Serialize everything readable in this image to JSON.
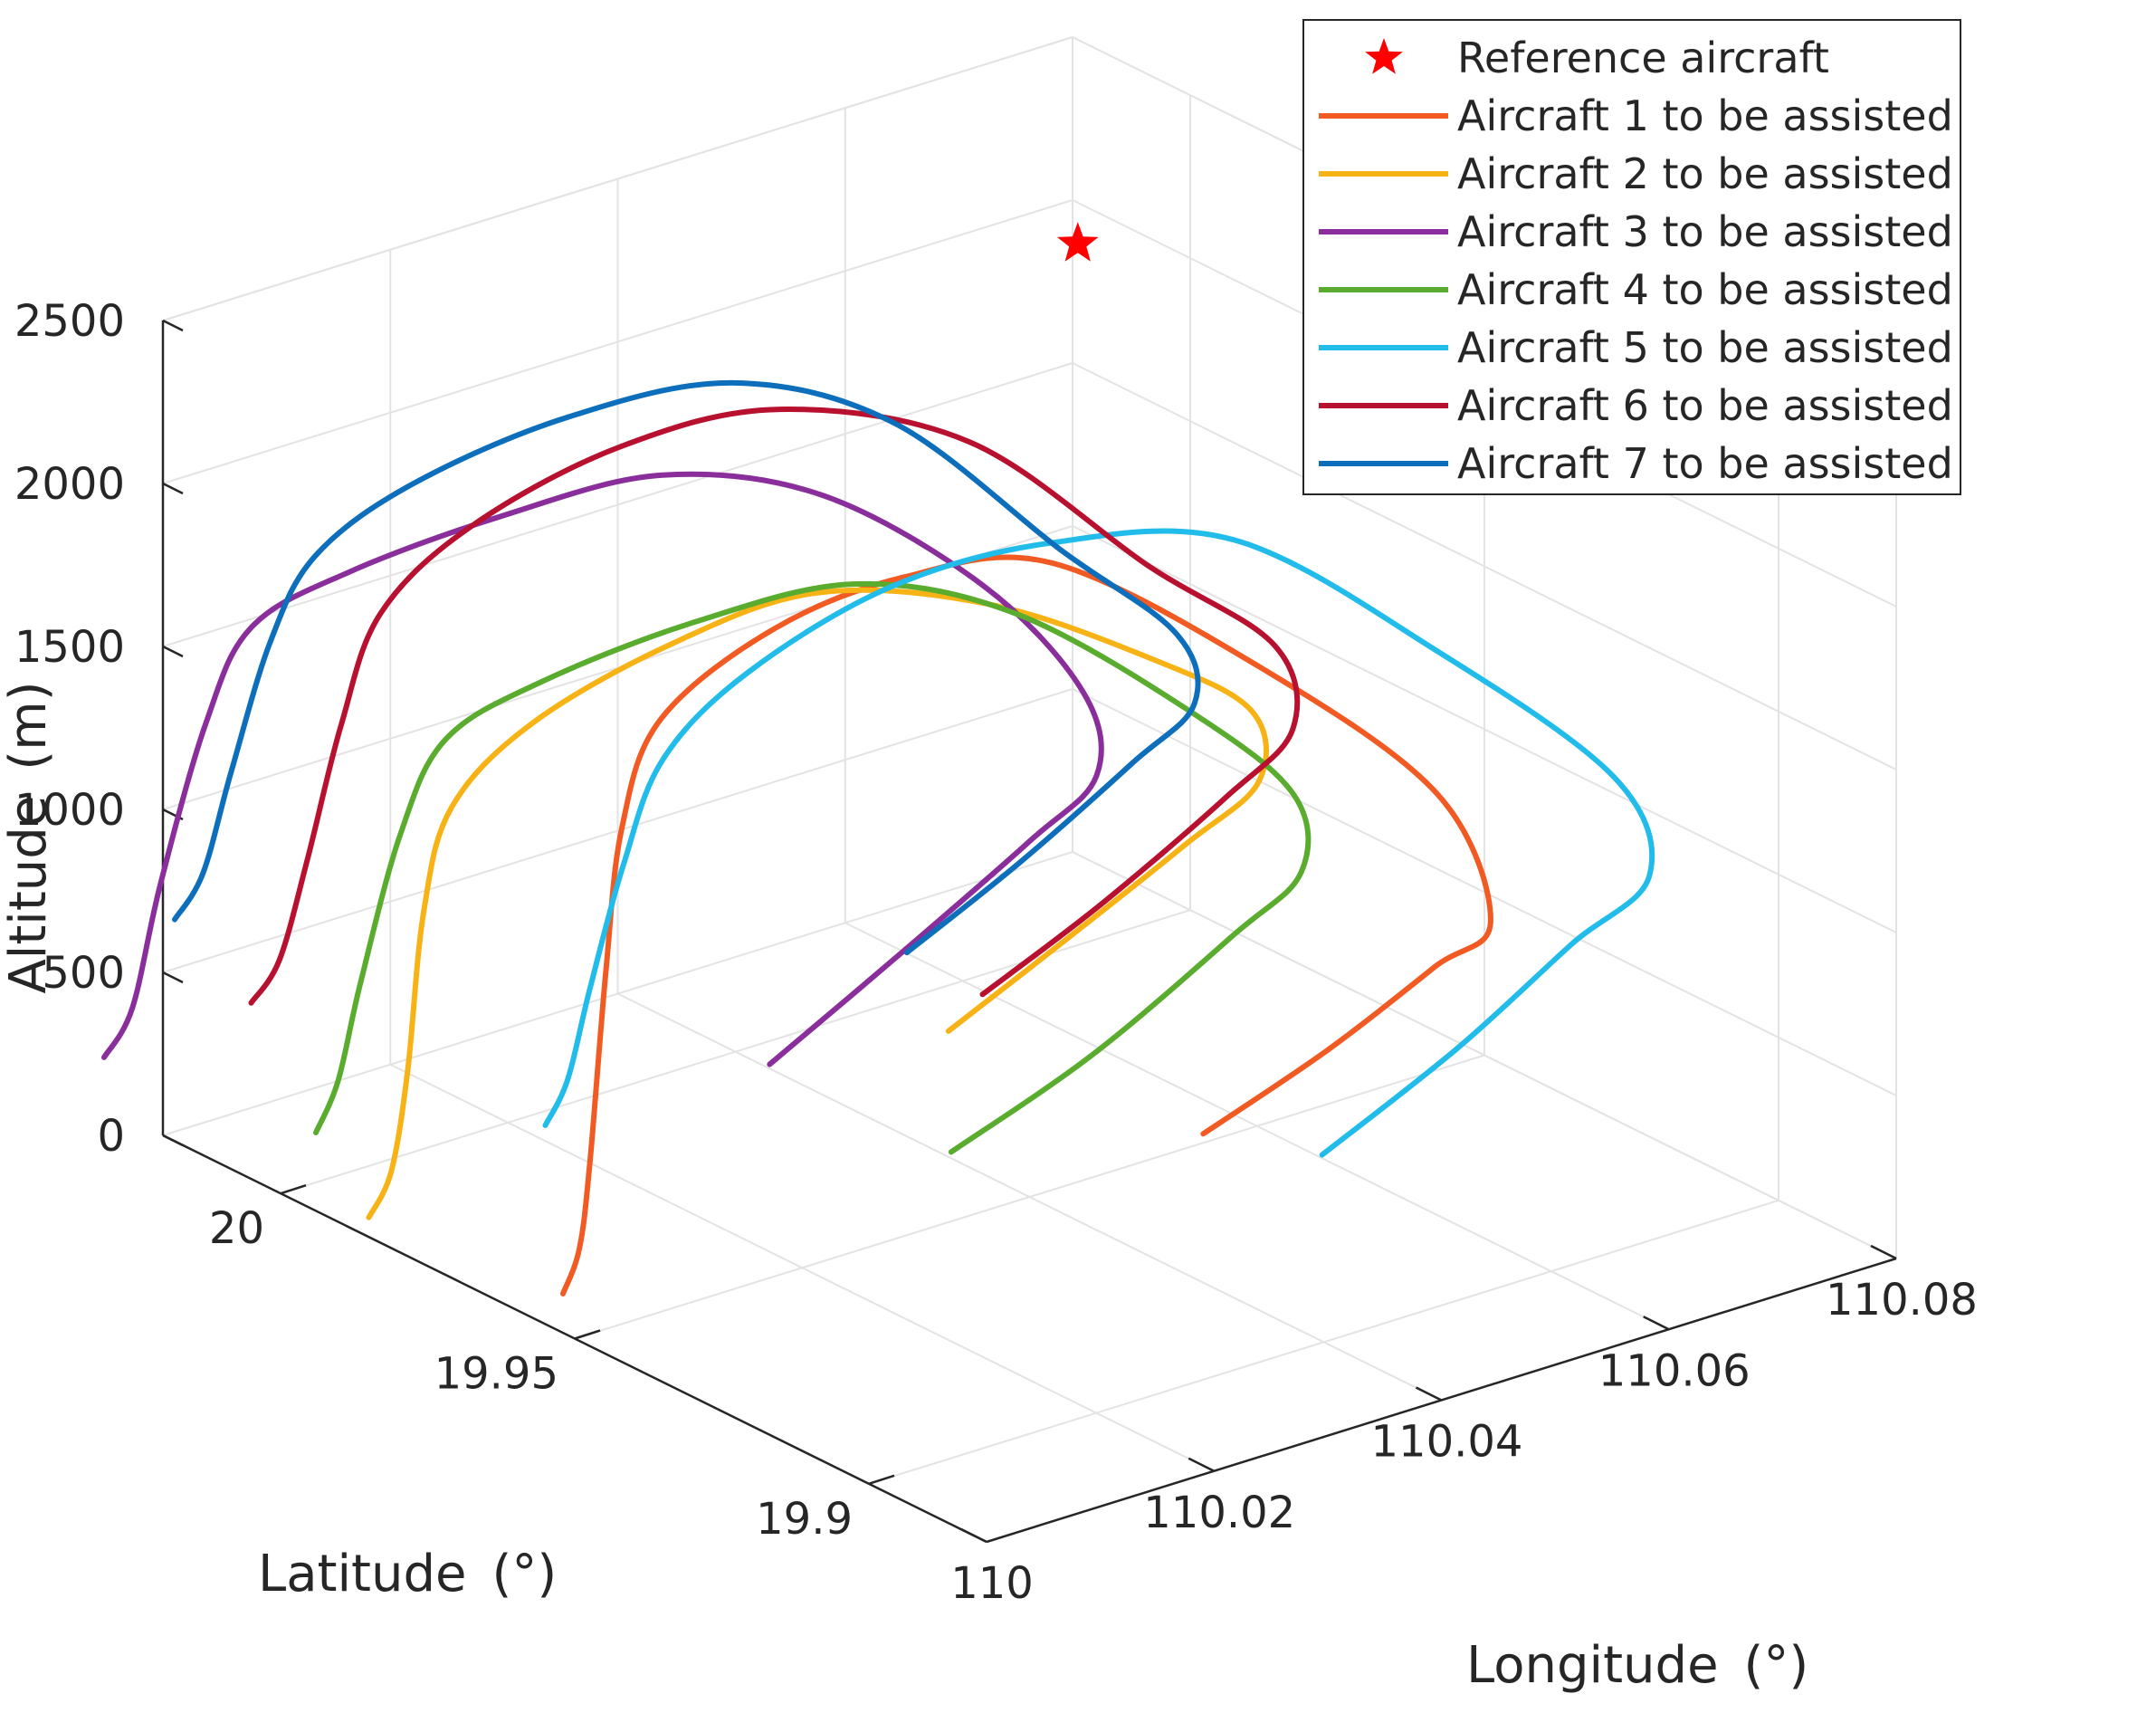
{
  "chart_data": {
    "type": "line3d",
    "title": "",
    "xlabel": "Longitude (°)",
    "ylabel": "Latitude (°)",
    "zlabel": "Altitude (m)",
    "xlim": [
      110,
      110.08
    ],
    "ylim": [
      19.88,
      20.02
    ],
    "zlim": [
      0,
      2500
    ],
    "x_ticks": [
      "110",
      "110.02",
      "110.04",
      "110.06",
      "110.08"
    ],
    "y_ticks": [
      "19.9",
      "19.95",
      "20"
    ],
    "z_ticks": [
      "0",
      "500",
      "1000",
      "1500",
      "2000",
      "2500"
    ],
    "grid": true,
    "legend_position": "top-right",
    "reference": {
      "name": "Reference aircraft",
      "color": "#ff0000",
      "marker": "star",
      "x": 110.052,
      "y": 19.965,
      "z": 2660
    },
    "series": [
      {
        "name": "Aircraft 1 to be assisted",
        "color": "#f15a22",
        "points": [
          [
            110.0,
            19.952,
            120
          ],
          [
            110.003,
            19.955,
            200
          ],
          [
            110.006,
            19.959,
            400
          ],
          [
            110.01,
            19.964,
            900
          ],
          [
            110.014,
            19.969,
            1250
          ],
          [
            110.02,
            19.974,
            1470
          ],
          [
            110.032,
            19.978,
            1580
          ],
          [
            110.044,
            19.979,
            1600
          ],
          [
            110.056,
            19.977,
            1530
          ],
          [
            110.07,
            19.968,
            1130
          ],
          [
            110.08,
            19.958,
            730
          ],
          [
            110.079,
            19.947,
            450
          ],
          [
            110.072,
            19.943,
            420
          ],
          [
            110.06,
            19.938,
            340
          ],
          [
            110.047,
            19.934,
            260
          ]
        ]
      },
      {
        "name": "Aircraft 2 to be assisted",
        "color": "#f7b316",
        "points": [
          [
            110.0,
            19.985,
            60
          ],
          [
            110.003,
            19.987,
            150
          ],
          [
            110.006,
            19.99,
            400
          ],
          [
            110.01,
            19.995,
            800
          ],
          [
            110.014,
            19.998,
            1050
          ],
          [
            110.022,
            20.0,
            1200
          ],
          [
            110.034,
            20.0,
            1310
          ],
          [
            110.046,
            19.998,
            1360
          ],
          [
            110.058,
            19.992,
            1250
          ],
          [
            110.068,
            19.983,
            1050
          ],
          [
            110.073,
            19.976,
            900
          ],
          [
            110.07,
            19.969,
            780
          ],
          [
            110.062,
            19.966,
            700
          ],
          [
            110.05,
            19.962,
            590
          ],
          [
            110.037,
            19.958,
            470
          ]
        ]
      },
      {
        "name": "Aircraft 3 to be assisted",
        "color": "#8a2e9b",
        "points": [
          [
            110.0,
            20.03,
            150
          ],
          [
            110.003,
            20.031,
            260
          ],
          [
            110.006,
            20.032,
            600
          ],
          [
            110.01,
            20.032,
            1050
          ],
          [
            110.014,
            20.032,
            1300
          ],
          [
            110.022,
            20.031,
            1390
          ],
          [
            110.034,
            20.028,
            1460
          ],
          [
            110.046,
            20.024,
            1490
          ],
          [
            110.056,
            20.016,
            1390
          ],
          [
            110.064,
            20.004,
            1130
          ],
          [
            110.067,
            19.993,
            870
          ],
          [
            110.064,
            19.985,
            720
          ],
          [
            110.056,
            19.981,
            640
          ],
          [
            110.042,
            19.976,
            490
          ],
          [
            110.028,
            19.971,
            350
          ]
        ]
      },
      {
        "name": "Aircraft 4 to be assisted",
        "color": "#5aac2f",
        "points": [
          [
            110.0,
            19.994,
            240
          ],
          [
            110.003,
            19.996,
            350
          ],
          [
            110.006,
            19.998,
            600
          ],
          [
            110.01,
            19.999,
            1000
          ],
          [
            110.014,
            19.999,
            1250
          ],
          [
            110.022,
            19.998,
            1350
          ],
          [
            110.034,
            19.995,
            1430
          ],
          [
            110.046,
            19.991,
            1450
          ],
          [
            110.056,
            19.983,
            1320
          ],
          [
            110.066,
            19.972,
            1000
          ],
          [
            110.07,
            19.963,
            790
          ],
          [
            110.067,
            19.956,
            650
          ],
          [
            110.059,
            19.952,
            580
          ],
          [
            110.044,
            19.947,
            420
          ],
          [
            110.03,
            19.944,
            300
          ]
        ]
      },
      {
        "name": "Aircraft 5 to be assisted",
        "color": "#21bcea",
        "points": [
          [
            110.0,
            19.955,
            610
          ],
          [
            110.003,
            19.957,
            700
          ],
          [
            110.006,
            19.959,
            930
          ],
          [
            110.01,
            19.961,
            1250
          ],
          [
            110.014,
            19.962,
            1520
          ],
          [
            110.022,
            19.963,
            1690
          ],
          [
            110.034,
            19.962,
            1830
          ],
          [
            110.046,
            19.958,
            1870
          ],
          [
            110.058,
            19.95,
            1820
          ],
          [
            110.07,
            19.939,
            1450
          ],
          [
            110.08,
            19.928,
            1050
          ],
          [
            110.079,
            19.92,
            830
          ],
          [
            110.07,
            19.916,
            750
          ],
          [
            110.058,
            19.912,
            600
          ],
          [
            110.044,
            19.908,
            460
          ]
        ]
      },
      {
        "name": "Aircraft 6 to be assisted",
        "color": "#b8112f",
        "points": [
          [
            110.0,
            20.005,
            540
          ],
          [
            110.003,
            20.006,
            630
          ],
          [
            110.006,
            20.007,
            900
          ],
          [
            110.01,
            20.009,
            1250
          ],
          [
            110.014,
            20.01,
            1540
          ],
          [
            110.022,
            20.01,
            1720
          ],
          [
            110.034,
            20.008,
            1850
          ],
          [
            110.046,
            20.004,
            1870
          ],
          [
            110.058,
            19.995,
            1720
          ],
          [
            110.068,
            19.984,
            1330
          ],
          [
            110.075,
            19.976,
            1080
          ],
          [
            110.073,
            19.969,
            910
          ],
          [
            110.065,
            19.965,
            820
          ],
          [
            110.052,
            19.961,
            670
          ],
          [
            110.04,
            19.958,
            550
          ]
        ]
      },
      {
        "name": "Aircraft 7 to be assisted",
        "color": "#0d6fbb",
        "points": [
          [
            110.0,
            20.018,
            680
          ],
          [
            110.003,
            20.019,
            780
          ],
          [
            110.006,
            20.02,
            1050
          ],
          [
            110.01,
            20.021,
            1400
          ],
          [
            110.014,
            20.021,
            1620
          ],
          [
            110.022,
            20.02,
            1760
          ],
          [
            110.034,
            20.017,
            1860
          ],
          [
            110.046,
            20.012,
            1880
          ],
          [
            110.056,
            20.004,
            1720
          ],
          [
            110.065,
            19.993,
            1330
          ],
          [
            110.071,
            19.985,
            1080
          ],
          [
            110.069,
            19.978,
            950
          ],
          [
            110.062,
            19.975,
            870
          ],
          [
            110.05,
            19.971,
            730
          ],
          [
            110.038,
            19.967,
            620
          ]
        ]
      }
    ]
  }
}
